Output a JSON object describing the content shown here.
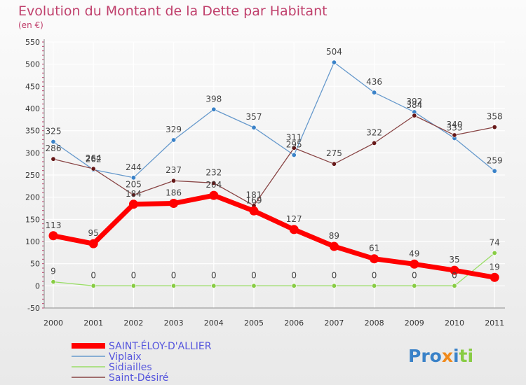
{
  "chart_data": {
    "type": "line",
    "title": "Evolution du Montant de la Dette par Habitant",
    "subtitle": "(en €)",
    "xlabel": "",
    "ylabel": "",
    "ylim": [
      -50,
      550
    ],
    "y_ticks": [
      -50,
      0,
      50,
      100,
      150,
      200,
      250,
      300,
      350,
      400,
      450,
      500,
      550
    ],
    "categories": [
      "2000",
      "2001",
      "2002",
      "2003",
      "2004",
      "2005",
      "2006",
      "2007",
      "2008",
      "2009",
      "2010",
      "2011"
    ],
    "grid": true,
    "legend_position": "bottom-left",
    "series": [
      {
        "name": "SAINT-ÉLOY-D'ALLIER",
        "color": "#ff0000",
        "marker_color": "#ff0000",
        "values": [
          113,
          95,
          184,
          186,
          204,
          169,
          127,
          89,
          61,
          49,
          35,
          19
        ],
        "labels": [
          "113",
          "95",
          "184",
          "186",
          "204",
          "169",
          "127",
          "89",
          "61",
          "49",
          "35",
          "19"
        ]
      },
      {
        "name": "Viplaix",
        "color": "#6699cc",
        "marker_color": "#3a82c8",
        "values": [
          325,
          262,
          244,
          329,
          398,
          357,
          295,
          504,
          436,
          392,
          333,
          259
        ],
        "labels": [
          "325",
          "262",
          "244",
          "329",
          "398",
          "357",
          "295",
          "504",
          "436",
          "392",
          "333",
          "259"
        ]
      },
      {
        "name": "Sidiailles",
        "color": "#99dd66",
        "marker_color": "#88cc44",
        "values": [
          9,
          0,
          0,
          0,
          0,
          0,
          0,
          0,
          0,
          0,
          0,
          74
        ],
        "labels": [
          "9",
          "0",
          "0",
          "0",
          "0",
          "0",
          "0",
          "0",
          "0",
          "0",
          "0",
          "74"
        ]
      },
      {
        "name": "Saint-Désiré",
        "color": "#884444",
        "marker_color": "#661818",
        "values": [
          286,
          264,
          205,
          237,
          232,
          181,
          311,
          275,
          322,
          384,
          340,
          358
        ],
        "labels": [
          "286",
          "264",
          "205",
          "237",
          "232",
          "181",
          "311",
          "275",
          "322",
          "384",
          "340",
          "358"
        ]
      }
    ],
    "watermark": "Proxiti"
  }
}
